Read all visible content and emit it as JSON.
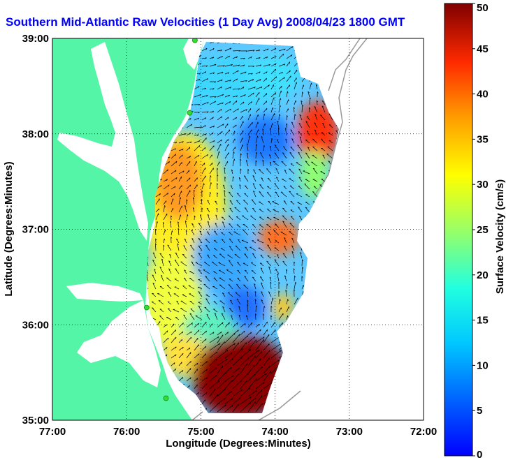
{
  "title": "Southern Mid-Atlantic Raw Velocities (1 Day Avg) 2008/04/23 1800 GMT",
  "x_axis": {
    "label": "Longitude (Degrees:Minutes)",
    "ticks": [
      "77:00",
      "76:00",
      "75:00",
      "74:00",
      "73:00",
      "72:00"
    ],
    "values": [
      -77,
      -76,
      -75,
      -74,
      -73,
      -72
    ],
    "range": [
      -77,
      -72
    ]
  },
  "y_axis": {
    "label": "Latitude (Degrees:Minutes)",
    "ticks": [
      "39:00",
      "38:00",
      "37:00",
      "36:00",
      "35:00"
    ],
    "values": [
      39,
      38,
      37,
      36,
      35
    ],
    "range": [
      35,
      39
    ]
  },
  "colorbar": {
    "label": "Surface Velocity (cm/s)",
    "ticks": [
      "50",
      "45",
      "40",
      "35",
      "30",
      "25",
      "20",
      "15",
      "10",
      "5",
      "0"
    ],
    "range": [
      0,
      50
    ],
    "colormap": "jet"
  },
  "colors": {
    "land": "#55f5a8",
    "water_bg": "#ffffff",
    "title": "#0000ff",
    "station": "#33dd33",
    "bathymetry": "#999999",
    "vector": "#000000"
  },
  "grid": "dotted",
  "stations": [
    {
      "lon": -75.08,
      "lat": 38.98
    },
    {
      "lon": -75.15,
      "lat": 38.22
    },
    {
      "lon": -75.73,
      "lat": 36.18
    },
    {
      "lon": -75.47,
      "lat": 35.23
    }
  ],
  "velocity_field": {
    "type": "heatmap",
    "units": "cm/s",
    "regions": [
      {
        "name_hint": "nearshore-north",
        "lat": 37.6,
        "lon": -74.9,
        "speed": 28
      },
      {
        "name_hint": "offshore-north-east",
        "lat": 38.1,
        "lon": -73.4,
        "speed": 42
      },
      {
        "name_hint": "central-eddy",
        "lat": 37.95,
        "lon": -74.0,
        "speed": 6
      },
      {
        "name_hint": "east-jet",
        "lat": 36.95,
        "lon": -73.8,
        "speed": 36
      },
      {
        "name_hint": "central-south",
        "lat": 36.6,
        "lon": -74.6,
        "speed": 11
      },
      {
        "name_hint": "gulf-stream",
        "lat": 35.4,
        "lon": -74.5,
        "speed": 49
      }
    ]
  }
}
